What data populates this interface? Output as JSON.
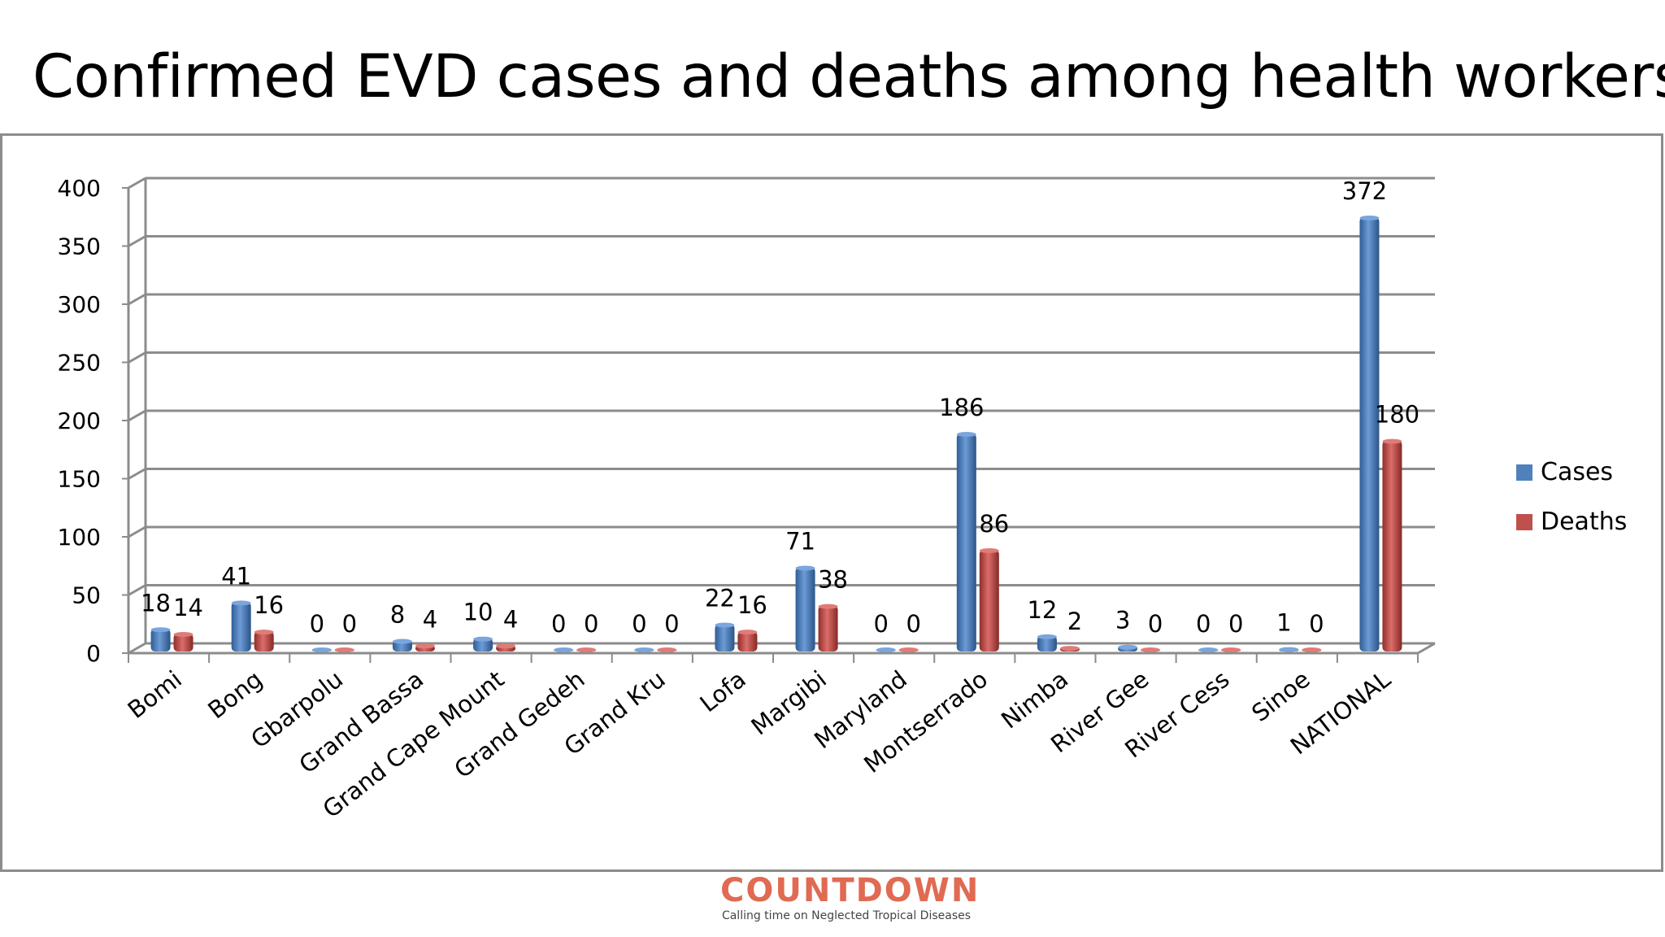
{
  "slide": {
    "title": "Confirmed EVD cases and deaths among health workers"
  },
  "footer": {
    "logo_text": "COUNTDOWN",
    "tagline": "Calling time on Neglected Tropical Diseases",
    "logo_color": "#e06a52"
  },
  "chart_data": {
    "type": "bar",
    "title": "",
    "xlabel": "",
    "ylabel": "",
    "ylim": [
      0,
      400
    ],
    "yticks": [
      0,
      50,
      100,
      150,
      200,
      250,
      300,
      350,
      400
    ],
    "grid": true,
    "legend_position": "right",
    "categories": [
      "Bomi",
      "Bong",
      "Gbarpolu",
      "Grand Bassa",
      "Grand Cape Mount",
      "Grand Gedeh",
      "Grand Kru",
      "Lofa",
      "Margibi",
      "Maryland",
      "Montserrado",
      "Nimba",
      "River Gee",
      "River Cess",
      "Sinoe",
      "NATIONAL"
    ],
    "series": [
      {
        "name": "Cases",
        "color": "#4f81bd",
        "values": [
          18,
          41,
          0,
          8,
          10,
          0,
          0,
          22,
          71,
          0,
          186,
          12,
          3,
          0,
          1,
          372
        ]
      },
      {
        "name": "Deaths",
        "color": "#c0504d",
        "values": [
          14,
          16,
          0,
          4,
          4,
          0,
          0,
          16,
          38,
          0,
          86,
          2,
          0,
          0,
          0,
          180
        ]
      }
    ]
  }
}
